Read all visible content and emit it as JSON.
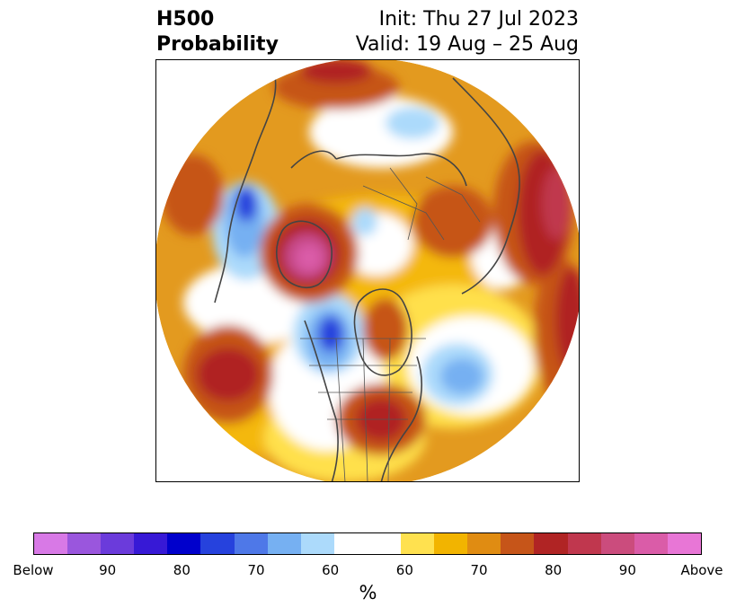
{
  "header": {
    "variable": "H500",
    "product": "Probability",
    "init": "Init: Thu 27 Jul 2023",
    "valid": "Valid: 19 Aug – 25 Aug"
  },
  "map": {
    "projection": "north-polar-stereographic",
    "coastline_color": "#444444",
    "features": [
      {
        "name": "Arctic / Eurasia warm anomaly",
        "color": "#e8a53a"
      },
      {
        "name": "Greenland cold anomaly",
        "color": "#6fa7ee"
      },
      {
        "name": "Hudson Bay strong above",
        "color": "#c64a88"
      },
      {
        "name": "Western Canada strong below",
        "color": "#2a45d8"
      },
      {
        "name": "Eastern US above",
        "color": "#b02424"
      },
      {
        "name": "North Atlantic below",
        "color": "#74aaf0"
      },
      {
        "name": "North Pacific above",
        "color": "#b02424"
      }
    ]
  },
  "colorbar": {
    "bins": [
      {
        "color": "#d879e6"
      },
      {
        "color": "#9a56dd"
      },
      {
        "color": "#6b3bdb"
      },
      {
        "color": "#3719d6"
      },
      {
        "color": "#0000cc"
      },
      {
        "color": "#2642dd"
      },
      {
        "color": "#4e78e8"
      },
      {
        "color": "#76b0f2"
      },
      {
        "color": "#acdafb"
      },
      {
        "color": "#ffffff"
      },
      {
        "color": "#ffffff"
      },
      {
        "color": "#ffe14f"
      },
      {
        "color": "#f2b400"
      },
      {
        "color": "#e08c12"
      },
      {
        "color": "#c65519"
      },
      {
        "color": "#b02424"
      },
      {
        "color": "#c0374e"
      },
      {
        "color": "#cb4c7d"
      },
      {
        "color": "#da5ca8"
      },
      {
        "color": "#e876d6"
      }
    ],
    "tick_labels": [
      "Below",
      "90",
      "80",
      "70",
      "60",
      "60",
      "70",
      "80",
      "90",
      "Above"
    ],
    "unit": "%"
  }
}
